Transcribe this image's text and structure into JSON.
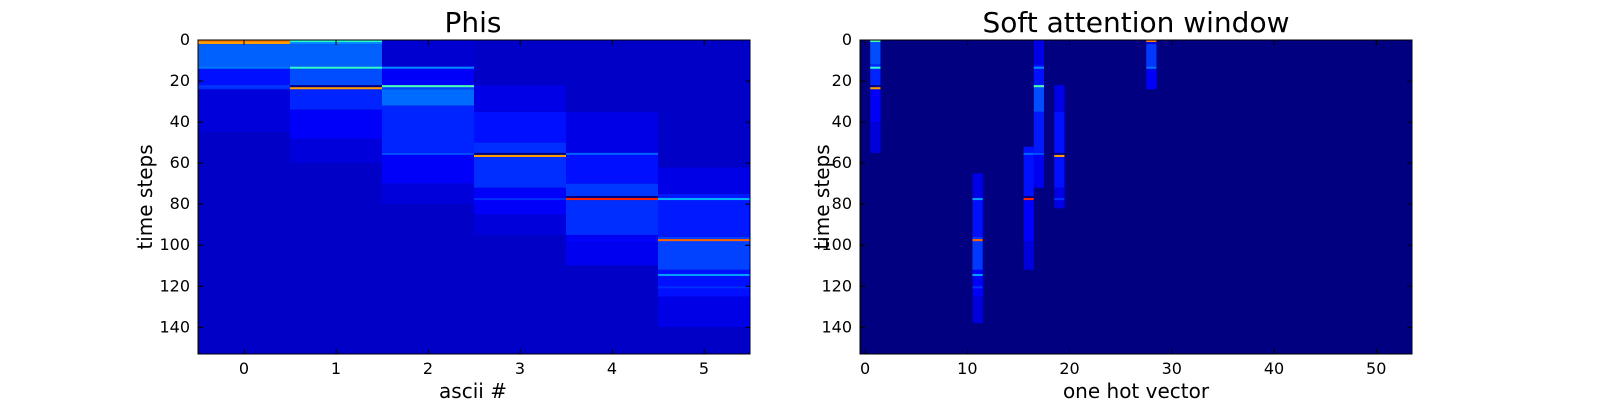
{
  "chart_data": [
    {
      "type": "heatmap",
      "title": "Phis",
      "xlabel": "ascii #",
      "ylabel": "time steps",
      "xlim": [
        -0.5,
        5.5
      ],
      "ylim": [
        0,
        153
      ],
      "y_inverted": true,
      "xticks": [
        0,
        1,
        2,
        3,
        4,
        5
      ],
      "yticks": [
        0,
        20,
        40,
        60,
        80,
        100,
        120,
        140
      ],
      "colormap": "jet",
      "background_color": "#000080",
      "columns": [
        {
          "x": 0,
          "bands": [
            [
              0,
              2,
              0.72
            ],
            [
              2,
              13,
              0.22
            ],
            [
              13,
              14,
              0.27
            ],
            [
              14,
              22,
              0.14
            ],
            [
              22,
              24,
              0.18
            ],
            [
              24,
              45,
              0.09
            ],
            [
              45,
              153,
              0.07
            ]
          ],
          "lines": [
            [
              0,
              0.75
            ],
            [
              13,
              0.24
            ],
            [
              23,
              0.17
            ]
          ]
        },
        {
          "x": 1,
          "bands": [
            [
              0,
              2,
              0.26
            ],
            [
              2,
              13,
              0.22
            ],
            [
              14,
              22,
              0.2
            ],
            [
              24,
              34,
              0.16
            ],
            [
              34,
              48,
              0.12
            ],
            [
              48,
              60,
              0.09
            ],
            [
              60,
              153,
              0.07
            ]
          ],
          "lines": [
            [
              0,
              0.42
            ],
            [
              13,
              0.42
            ],
            [
              23,
              0.72
            ]
          ]
        },
        {
          "x": 2,
          "bands": [
            [
              0,
              13,
              0.08
            ],
            [
              13,
              22,
              0.12
            ],
            [
              22,
              24,
              0.19
            ],
            [
              24,
              32,
              0.23
            ],
            [
              32,
              55,
              0.16
            ],
            [
              55,
              70,
              0.12
            ],
            [
              70,
              80,
              0.09
            ],
            [
              80,
              153,
              0.07
            ]
          ],
          "lines": [
            [
              13,
              0.26
            ],
            [
              22,
              0.45
            ],
            [
              55,
              0.2
            ]
          ]
        },
        {
          "x": 3,
          "bands": [
            [
              0,
              22,
              0.07
            ],
            [
              22,
              35,
              0.1
            ],
            [
              35,
              50,
              0.14
            ],
            [
              50,
              55,
              0.17
            ],
            [
              57,
              72,
              0.17
            ],
            [
              72,
              85,
              0.12
            ],
            [
              85,
              95,
              0.09
            ],
            [
              95,
              153,
              0.07
            ]
          ],
          "lines": [
            [
              56,
              0.72
            ],
            [
              77,
              0.17
            ]
          ]
        },
        {
          "x": 4,
          "bands": [
            [
              0,
              35,
              0.07
            ],
            [
              35,
              55,
              0.1
            ],
            [
              55,
              70,
              0.14
            ],
            [
              70,
              76,
              0.18
            ],
            [
              78,
              95,
              0.17
            ],
            [
              95,
              110,
              0.11
            ],
            [
              110,
              153,
              0.07
            ]
          ],
          "lines": [
            [
              55,
              0.22
            ],
            [
              77,
              0.84
            ],
            [
              97,
              0.13
            ]
          ]
        },
        {
          "x": 5,
          "bands": [
            [
              0,
              62,
              0.07
            ],
            [
              62,
              75,
              0.1
            ],
            [
              75,
              96,
              0.15
            ],
            [
              96,
              112,
              0.19
            ],
            [
              112,
              125,
              0.14
            ],
            [
              125,
              140,
              0.1
            ],
            [
              140,
              153,
              0.07
            ]
          ],
          "lines": [
            [
              77,
              0.3
            ],
            [
              97,
              0.78
            ],
            [
              114,
              0.28
            ],
            [
              120,
              0.17
            ]
          ]
        }
      ]
    },
    {
      "type": "heatmap",
      "title": "Soft attention window",
      "xlabel": "one hot vector",
      "ylabel": "time steps",
      "xlim": [
        -0.5,
        53.5
      ],
      "ylim": [
        0,
        153
      ],
      "y_inverted": true,
      "xticks": [
        0,
        10,
        20,
        30,
        40,
        50
      ],
      "yticks": [
        0,
        20,
        40,
        60,
        80,
        100,
        120,
        140
      ],
      "colormap": "jet",
      "background_color": "#000080",
      "columns": [
        {
          "x": 1,
          "bands": [
            [
              0,
              12,
              0.2
            ],
            [
              12,
              22,
              0.16
            ],
            [
              24,
              40,
              0.12
            ],
            [
              40,
              55,
              0.09
            ]
          ],
          "lines": [
            [
              0,
              0.45
            ],
            [
              13,
              0.42
            ],
            [
              23,
              0.72
            ]
          ]
        },
        {
          "x": 11,
          "bands": [
            [
              65,
              77,
              0.1
            ],
            [
              77,
              96,
              0.14
            ],
            [
              96,
              112,
              0.18
            ],
            [
              112,
              125,
              0.12
            ],
            [
              125,
              138,
              0.09
            ]
          ],
          "lines": [
            [
              77,
              0.28
            ],
            [
              97,
              0.78
            ],
            [
              114,
              0.28
            ],
            [
              120,
              0.17
            ]
          ]
        },
        {
          "x": 16,
          "bands": [
            [
              52,
              76,
              0.14
            ],
            [
              78,
              98,
              0.12
            ],
            [
              98,
              112,
              0.09
            ]
          ],
          "lines": [
            [
              55,
              0.22
            ],
            [
              77,
              0.84
            ]
          ]
        },
        {
          "x": 17,
          "bands": [
            [
              0,
              12,
              0.1
            ],
            [
              12,
              22,
              0.14
            ],
            [
              22,
              35,
              0.2
            ],
            [
              35,
              55,
              0.15
            ],
            [
              55,
              72,
              0.11
            ]
          ],
          "lines": [
            [
              13,
              0.26
            ],
            [
              22,
              0.45
            ],
            [
              55,
              0.2
            ]
          ]
        },
        {
          "x": 19,
          "bands": [
            [
              22,
              35,
              0.1
            ],
            [
              35,
              55,
              0.14
            ],
            [
              57,
              72,
              0.14
            ],
            [
              72,
              82,
              0.1
            ]
          ],
          "lines": [
            [
              56,
              0.72
            ],
            [
              77,
              0.17
            ]
          ]
        },
        {
          "x": 28,
          "bands": [
            [
              0,
              2,
              0.1
            ],
            [
              2,
              13,
              0.18
            ],
            [
              14,
              24,
              0.12
            ]
          ],
          "lines": [
            [
              0,
              0.75
            ],
            [
              13,
              0.24
            ]
          ]
        }
      ]
    }
  ]
}
